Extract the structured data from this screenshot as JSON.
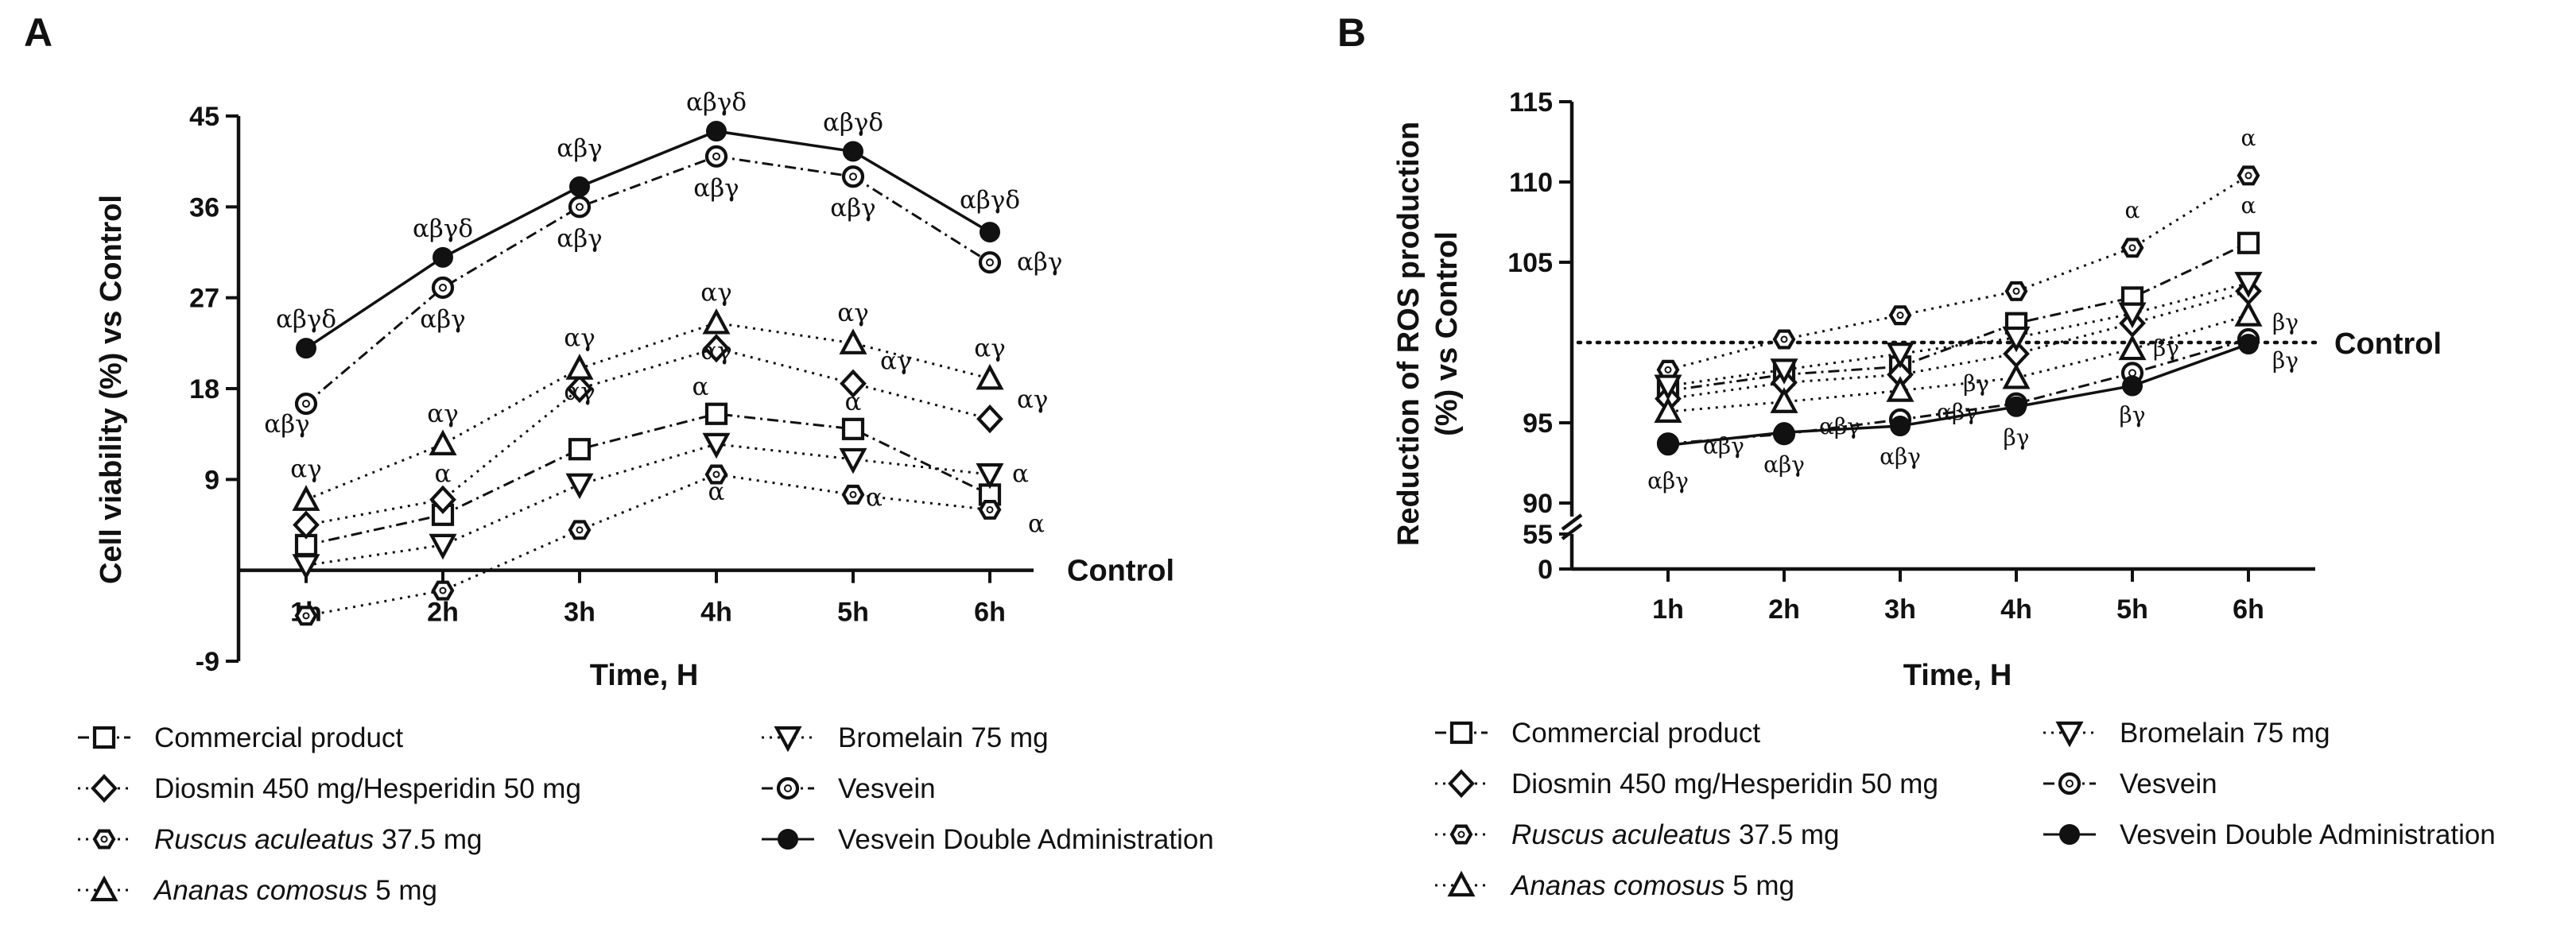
{
  "chart_data": [
    {
      "panel": "A",
      "type": "line",
      "categories": [
        "1h",
        "2h",
        "3h",
        "4h",
        "5h",
        "6h"
      ],
      "xlabel": "Time, H",
      "ylabel": "Cell viability (%) vs Control",
      "ylim": [
        -9,
        45
      ],
      "yticks": [
        "-9",
        "9",
        "18",
        "27",
        "36",
        "45"
      ],
      "reference_line": {
        "label": "Control",
        "value": 0
      },
      "series": [
        {
          "name": "Commercial product",
          "marker": "square",
          "dash": "dashdot",
          "values": [
            2.5,
            5.5,
            12,
            15.5,
            14,
            7.5
          ],
          "annotations": [
            "",
            "",
            "",
            "α",
            "α",
            "α"
          ]
        },
        {
          "name": "Diosmin 450 mg/Hesperidin 50 mg",
          "marker": "diamond",
          "dash": "dotted",
          "values": [
            4.5,
            7,
            18,
            22,
            18.5,
            15
          ],
          "annotations": [
            "",
            "α",
            "αγ",
            "αγ",
            "αγ",
            "αγ"
          ]
        },
        {
          "name": "Ruscus aculeatus 37.5 mg",
          "italic": "Ruscus aculeatus",
          "suffix": " 37.5 mg",
          "marker": "hexagon",
          "dash": "dotted",
          "values": [
            -4.5,
            -2,
            4,
            9.5,
            7.5,
            6
          ],
          "annotations": [
            "",
            "",
            "",
            "α",
            "α",
            "α"
          ]
        },
        {
          "name": "Ananas comosus 5 mg",
          "italic": "Ananas comosus",
          "suffix": " 5 mg",
          "marker": "triangle-up",
          "dash": "dotted",
          "values": [
            7,
            12.5,
            20,
            24.5,
            22.5,
            19
          ],
          "annotations": [
            "αγ",
            "αγ",
            "αγ",
            "αγ",
            "αγ",
            "αγ"
          ]
        },
        {
          "name": "Bromelain 75 mg",
          "marker": "triangle-down",
          "dash": "dotted",
          "values": [
            0.5,
            2.5,
            8.5,
            12.5,
            11,
            9.5
          ],
          "annotations": [
            "",
            "",
            "",
            "",
            "",
            ""
          ]
        },
        {
          "name": "Vesvein",
          "marker": "circle-open",
          "dash": "dashdot",
          "values": [
            16.5,
            28,
            36,
            41,
            39,
            30.5
          ],
          "annotations": [
            "αβγ",
            "αβγ",
            "αβγ",
            "αβγ",
            "αβγ",
            "αβγ"
          ]
        },
        {
          "name": "Vesvein Double Administration",
          "marker": "circle-filled",
          "dash": "solid",
          "values": [
            22,
            31,
            38,
            43.5,
            41.5,
            33.5
          ],
          "annotations": [
            "αβγδ",
            "αβγδ",
            "αβγ",
            "αβγδ",
            "αβγδ",
            "αβγδ"
          ]
        }
      ]
    },
    {
      "panel": "B",
      "type": "line",
      "categories": [
        "1h",
        "2h",
        "3h",
        "4h",
        "5h",
        "6h"
      ],
      "xlabel": "Time, H",
      "ylabel": "Reduction of ROS production (%) vs Control",
      "ylim": [
        90,
        115
      ],
      "axis_break": {
        "lower_ticks": [
          "0",
          "55"
        ],
        "upper_ticks": [
          "90",
          "95",
          "105",
          "110",
          "115"
        ]
      },
      "reference_line": {
        "label": "Control",
        "value": 100
      },
      "series": [
        {
          "name": "Commercial product",
          "marker": "square",
          "dash": "dashdot",
          "values": [
            97,
            98,
            98.5,
            101.2,
            102.8,
            106.2
          ],
          "annotations": [
            "",
            "",
            "",
            "",
            "",
            "α"
          ]
        },
        {
          "name": "Diosmin 450 mg/Hesperidin 50 mg",
          "marker": "diamond",
          "dash": "dotted",
          "values": [
            96.5,
            97.5,
            98,
            99.3,
            101.2,
            103.2
          ],
          "annotations": [
            "",
            "",
            "",
            "",
            "",
            ""
          ]
        },
        {
          "name": "Ruscus aculeatus 37.5 mg",
          "italic": "Ruscus aculeatus",
          "suffix": " 37.5 mg",
          "marker": "hexagon",
          "dash": "dotted",
          "values": [
            98.3,
            100.2,
            101.7,
            103.2,
            105.9,
            110.4
          ],
          "annotations": [
            "",
            "",
            "",
            "",
            "α",
            "α"
          ]
        },
        {
          "name": "Ananas comosus 5 mg",
          "italic": "Ananas comosus",
          "suffix": " 5 mg",
          "marker": "triangle-up",
          "dash": "dotted",
          "values": [
            95.7,
            96.3,
            97,
            97.8,
            99.6,
            101.7
          ],
          "annotations": [
            "",
            "",
            "",
            "",
            "",
            ""
          ]
        },
        {
          "name": "Bromelain 75 mg",
          "marker": "triangle-down",
          "dash": "dotted",
          "values": [
            97.3,
            98.3,
            99.3,
            100.3,
            101.8,
            103.7
          ],
          "annotations": [
            "",
            "",
            "",
            "",
            "",
            ""
          ]
        },
        {
          "name": "Vesvein",
          "marker": "circle-open",
          "dash": "dashdot",
          "values": [
            93.7,
            94.3,
            95.2,
            96.2,
            98.1,
            100.2
          ],
          "annotations": [
            "αβγ",
            "αβγ",
            "αβγ",
            "βγ",
            "βγ",
            "βγ"
          ]
        },
        {
          "name": "Vesvein Double Administration",
          "marker": "circle-filled",
          "dash": "solid",
          "values": [
            93.6,
            94.4,
            94.8,
            96,
            97.3,
            99.9
          ],
          "annotations": [
            "αβγ",
            "αβγ",
            "αβγ",
            "βγ",
            "βγ",
            "βγ"
          ]
        }
      ]
    }
  ]
}
